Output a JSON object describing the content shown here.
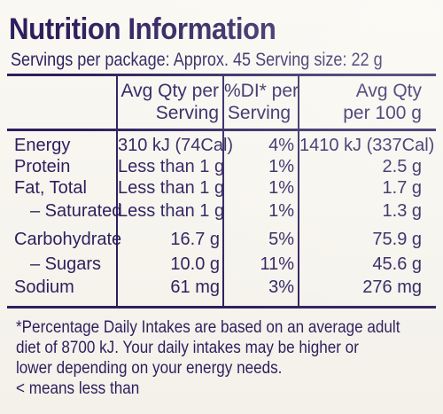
{
  "title": "Nutrition Information",
  "servings_line": "Servings per package: Approx. 45  Serving size: 22 g",
  "headers": {
    "per_serving": [
      "Avg Qty per",
      "Serving"
    ],
    "di": [
      "%DI* per",
      "Serving"
    ],
    "per_100g": [
      "Avg Qty",
      "per 100 g"
    ]
  },
  "rows": [
    {
      "label": "Energy",
      "serving": "310 kJ (74Cal)",
      "di": "4%",
      "per100": "1410 kJ (337Cal)"
    },
    {
      "label": "Protein",
      "serving": "Less than 1 g",
      "di": "1%",
      "per100": "2.5 g"
    },
    {
      "label": "Fat, Total",
      "serving": "Less than 1 g",
      "di": "1%",
      "per100": "1.7 g"
    },
    {
      "label": "– Saturated",
      "serving": "Less than 1 g",
      "di": "1%",
      "per100": "1.3 g"
    },
    {
      "label": "Carbohydrate",
      "serving": "16.7 g",
      "di": "5%",
      "per100": "75.9 g"
    },
    {
      "label": "– Sugars",
      "serving": "10.0 g",
      "di": "11%",
      "per100": "45.6 g"
    },
    {
      "label": "Sodium",
      "serving": "61 mg",
      "di": "3%",
      "per100": "276 mg"
    }
  ],
  "footnote": [
    "*Percentage Daily Intakes are based on an average adult",
    "diet of 8700 kJ. Your daily intakes may be higher or",
    "lower depending on your energy needs.",
    "< means less than"
  ],
  "colors": {
    "ink": "#2d1f5e",
    "background": "#f6f4ee"
  }
}
